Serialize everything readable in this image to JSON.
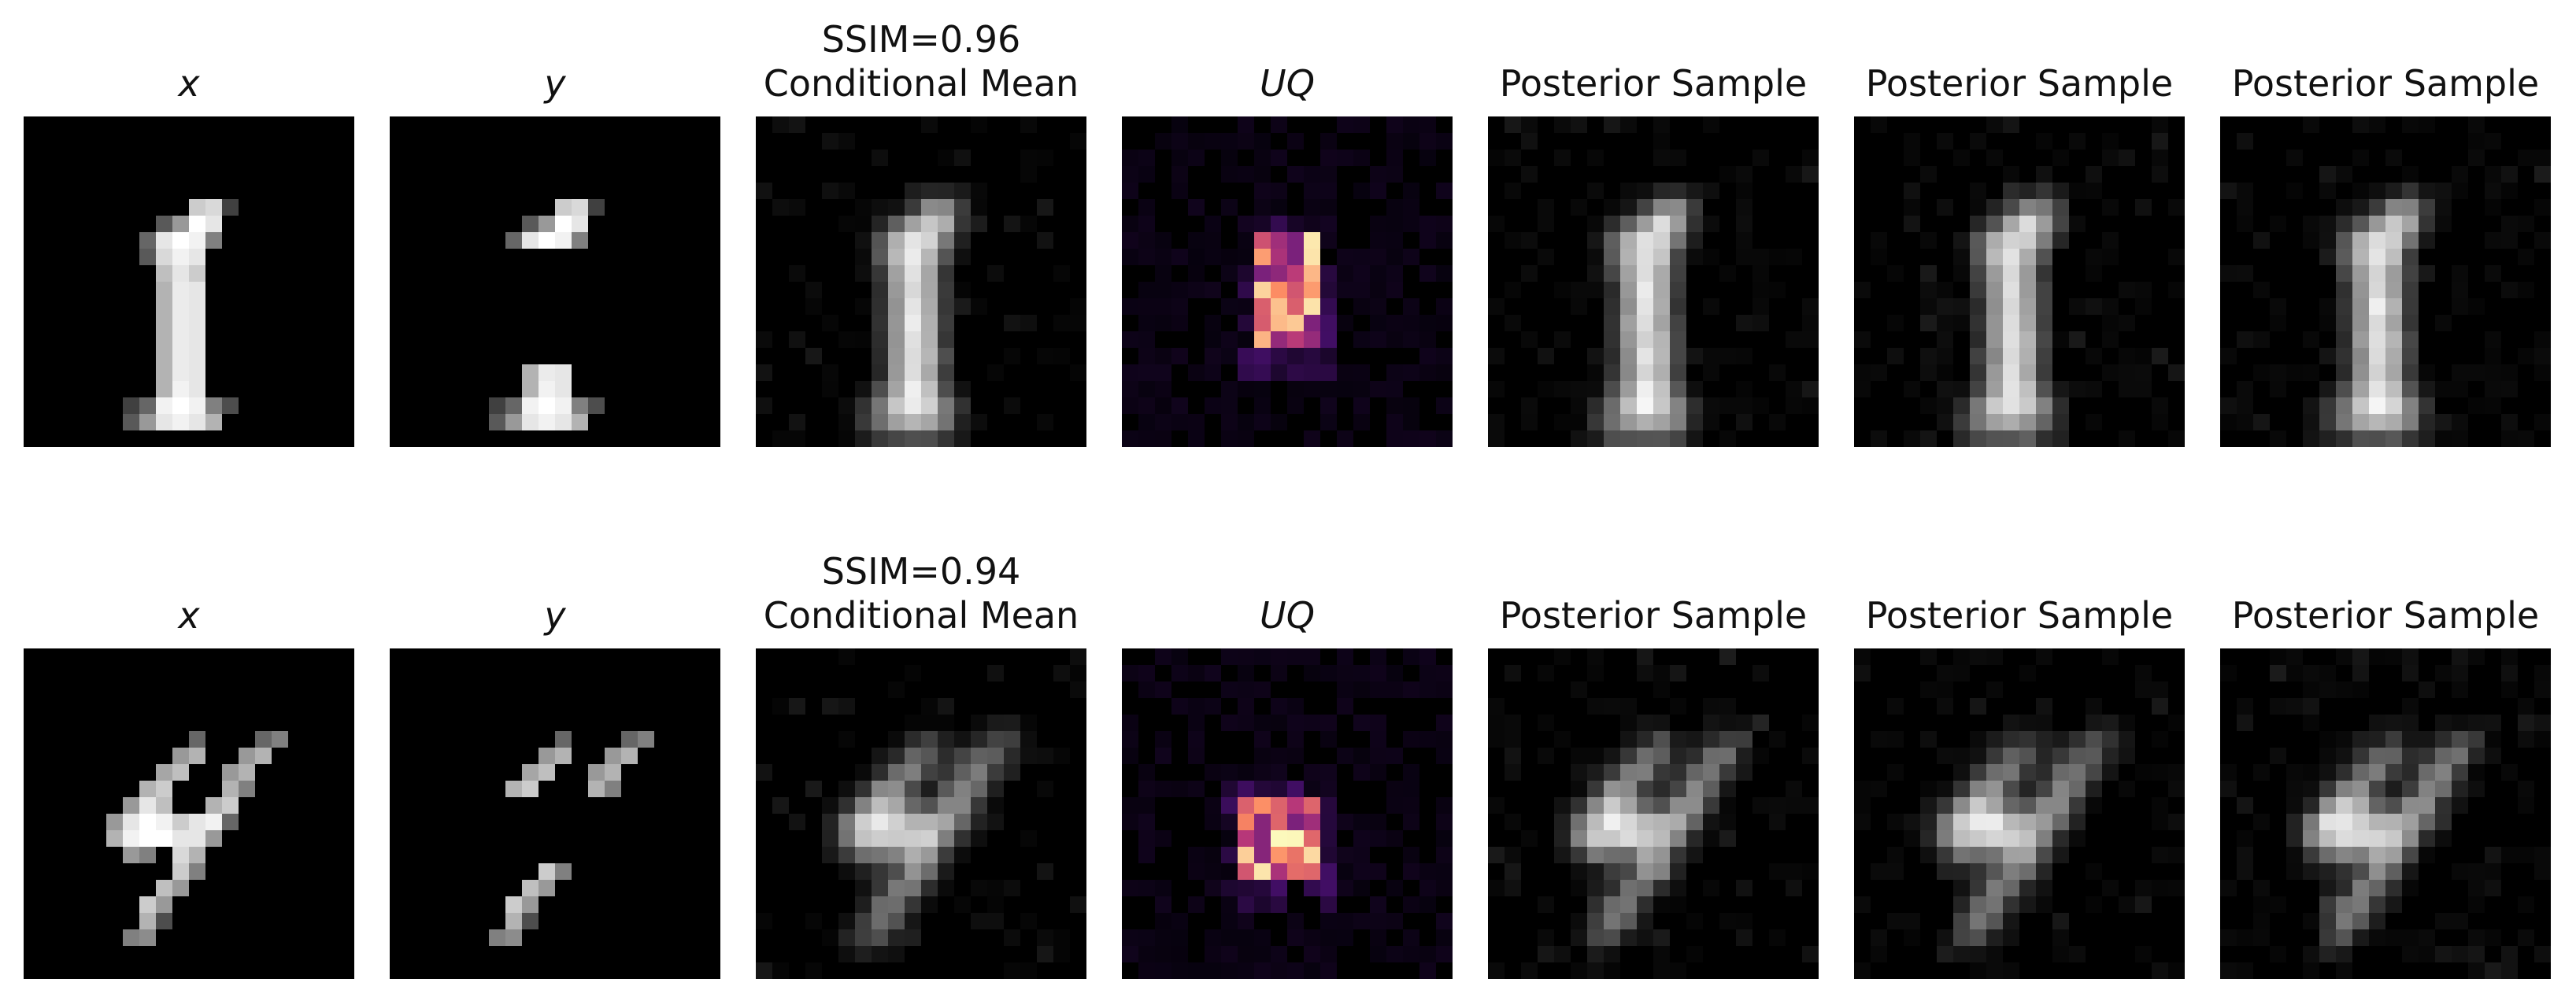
{
  "rows": [
    {
      "ssim_label": "SSIM=0.96",
      "titles": [
        "x",
        "y",
        "Conditional Mean",
        "UQ",
        "Posterior Sample",
        "Posterior Sample",
        "Posterior Sample"
      ],
      "digit": "1"
    },
    {
      "ssim_label": "SSIM=0.94",
      "titles": [
        "x",
        "y",
        "Conditional Mean",
        "UQ",
        "Posterior Sample",
        "Posterior Sample",
        "Posterior Sample"
      ],
      "digit": "4"
    }
  ],
  "colormaps": {
    "grayscale": "gray",
    "uncertainty": "magma"
  },
  "colors": {
    "background": "#000000",
    "page": "#ffffff"
  }
}
